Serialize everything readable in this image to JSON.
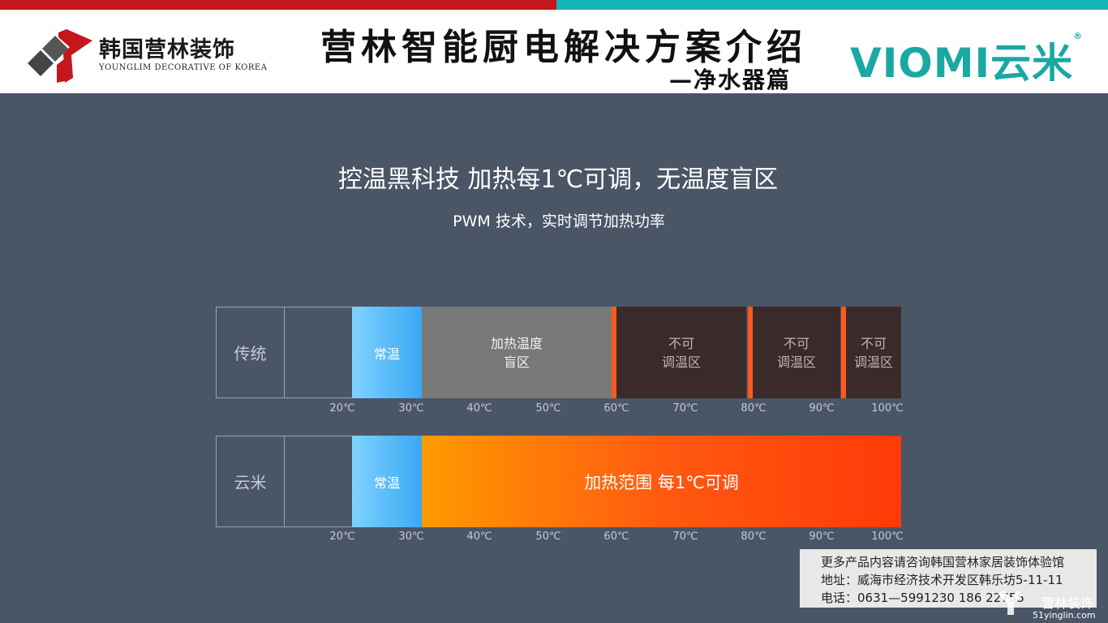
{
  "header": {
    "logo_text": "韩国营林装饰",
    "logo_subtitle": "YOUNGLIM DECORATIVE OF KOREA",
    "title": "营林智能厨电解决方案介绍",
    "subtitle": "—净水器篇",
    "brand": "VIOMI云米",
    "brand_mark": "®"
  },
  "headline": "控温黑科技  加热每1℃可调，无温度盲区",
  "subline": "PWM 技术，实时调节加热功率",
  "traditional": {
    "label": "传统",
    "normal": "常温",
    "blind_line1": "加热温度",
    "blind_line2": "盲区",
    "zone_line1": "不可",
    "zone_line2": "调温区"
  },
  "yunmi": {
    "label": "云米",
    "normal": "常温",
    "heat": "加热范围 每1℃可调"
  },
  "ticks": [
    "20℃",
    "30℃",
    "40℃",
    "50℃",
    "60℃",
    "70℃",
    "80℃",
    "90℃",
    "100℃"
  ],
  "colors": {
    "background": "#4a5566",
    "brand_red": "#c4161c",
    "brand_teal": "#16b5b8",
    "normal_blue": "#3aa8f4",
    "heat_orange": "#ff5a10",
    "blind_gray": "#787878",
    "dead_zone": "#3a2a2a"
  },
  "info": {
    "line1": "更多产品内容请咨询韩国营林家居装饰体验馆",
    "line2": "地址：威海市经济技术开发区韩乐坊5-11-11",
    "line3": "电话：0631—5991230       186  22755"
  },
  "watermark": {
    "text": "营林装饰",
    "url": "51yinglin.com"
  }
}
